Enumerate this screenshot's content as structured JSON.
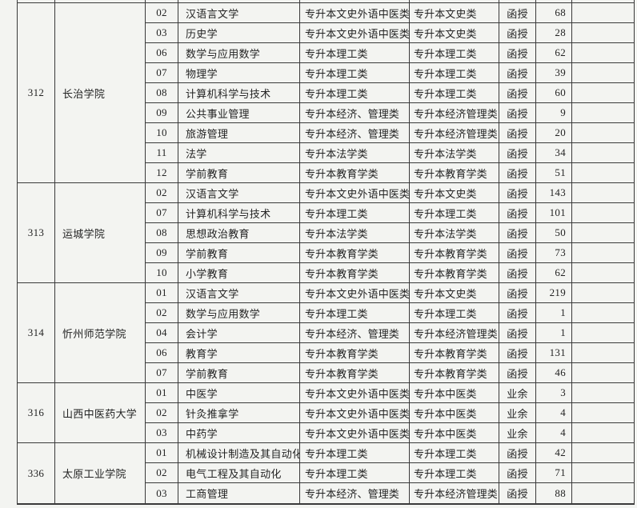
{
  "page": {
    "background_color": "#f3f4f1",
    "border_color": "#3a3a3a",
    "text_color": "#232323"
  },
  "table": {
    "sections": [
      {
        "college_code": "312",
        "college_name": "长治学院",
        "rows": [
          {
            "major_code": "02",
            "major_name": "汉语言文学",
            "category_1": "专升本文史外语中医类",
            "category_2": "专升本文史类",
            "study_form": "函授",
            "count": "68",
            "blank": ""
          },
          {
            "major_code": "03",
            "major_name": "历史学",
            "category_1": "专升本文史外语中医类",
            "category_2": "专升本文史类",
            "study_form": "函授",
            "count": "28",
            "blank": ""
          },
          {
            "major_code": "06",
            "major_name": "数学与应用数学",
            "category_1": "专升本理工类",
            "category_2": "专升本理工类",
            "study_form": "函授",
            "count": "62",
            "blank": ""
          },
          {
            "major_code": "07",
            "major_name": "物理学",
            "category_1": "专升本理工类",
            "category_2": "专升本理工类",
            "study_form": "函授",
            "count": "39",
            "blank": ""
          },
          {
            "major_code": "08",
            "major_name": "计算机科学与技术",
            "category_1": "专升本理工类",
            "category_2": "专升本理工类",
            "study_form": "函授",
            "count": "60",
            "blank": ""
          },
          {
            "major_code": "09",
            "major_name": "公共事业管理",
            "category_1": "专升本经济、管理类",
            "category_2": "专升本经济管理类",
            "study_form": "函授",
            "count": "9",
            "blank": ""
          },
          {
            "major_code": "10",
            "major_name": "旅游管理",
            "category_1": "专升本经济、管理类",
            "category_2": "专升本经济管理类",
            "study_form": "函授",
            "count": "20",
            "blank": ""
          },
          {
            "major_code": "11",
            "major_name": "法学",
            "category_1": "专升本法学类",
            "category_2": "专升本法学类",
            "study_form": "函授",
            "count": "34",
            "blank": ""
          },
          {
            "major_code": "12",
            "major_name": "学前教育",
            "category_1": "专升本教育学类",
            "category_2": "专升本教育学类",
            "study_form": "函授",
            "count": "51",
            "blank": ""
          }
        ]
      },
      {
        "college_code": "313",
        "college_name": "运城学院",
        "rows": [
          {
            "major_code": "02",
            "major_name": "汉语言文学",
            "category_1": "专升本文史外语中医类",
            "category_2": "专升本文史类",
            "study_form": "函授",
            "count": "143",
            "blank": ""
          },
          {
            "major_code": "07",
            "major_name": "计算机科学与技术",
            "category_1": "专升本理工类",
            "category_2": "专升本理工类",
            "study_form": "函授",
            "count": "101",
            "blank": ""
          },
          {
            "major_code": "08",
            "major_name": "思想政治教育",
            "category_1": "专升本法学类",
            "category_2": "专升本法学类",
            "study_form": "函授",
            "count": "50",
            "blank": ""
          },
          {
            "major_code": "09",
            "major_name": "学前教育",
            "category_1": "专升本教育学类",
            "category_2": "专升本教育学类",
            "study_form": "函授",
            "count": "73",
            "blank": ""
          },
          {
            "major_code": "10",
            "major_name": "小学教育",
            "category_1": "专升本教育学类",
            "category_2": "专升本教育学类",
            "study_form": "函授",
            "count": "62",
            "blank": ""
          }
        ]
      },
      {
        "college_code": "314",
        "college_name": "忻州师范学院",
        "rows": [
          {
            "major_code": "01",
            "major_name": "汉语言文学",
            "category_1": "专升本文史外语中医类",
            "category_2": "专升本文史类",
            "study_form": "函授",
            "count": "219",
            "blank": ""
          },
          {
            "major_code": "02",
            "major_name": "数学与应用数学",
            "category_1": "专升本理工类",
            "category_2": "专升本理工类",
            "study_form": "函授",
            "count": "1",
            "blank": ""
          },
          {
            "major_code": "04",
            "major_name": "会计学",
            "category_1": "专升本经济、管理类",
            "category_2": "专升本经济管理类",
            "study_form": "函授",
            "count": "1",
            "blank": ""
          },
          {
            "major_code": "06",
            "major_name": "教育学",
            "category_1": "专升本教育学类",
            "category_2": "专升本教育学类",
            "study_form": "函授",
            "count": "131",
            "blank": ""
          },
          {
            "major_code": "07",
            "major_name": "学前教育",
            "category_1": "专升本教育学类",
            "category_2": "专升本教育学类",
            "study_form": "函授",
            "count": "46",
            "blank": ""
          }
        ]
      },
      {
        "college_code": "316",
        "college_name": "山西中医药大学",
        "rows": [
          {
            "major_code": "01",
            "major_name": "中医学",
            "category_1": "专升本文史外语中医类",
            "category_2": "专升本中医类",
            "study_form": "业余",
            "count": "3",
            "blank": ""
          },
          {
            "major_code": "02",
            "major_name": "针灸推拿学",
            "category_1": "专升本文史外语中医类",
            "category_2": "专升本中医类",
            "study_form": "业余",
            "count": "4",
            "blank": ""
          },
          {
            "major_code": "03",
            "major_name": "中药学",
            "category_1": "专升本文史外语中医类",
            "category_2": "专升本中医类",
            "study_form": "业余",
            "count": "4",
            "blank": ""
          }
        ]
      },
      {
        "college_code": "336",
        "college_name": "太原工业学院",
        "rows": [
          {
            "major_code": "01",
            "major_name": "机械设计制造及其自动化",
            "category_1": "专升本理工类",
            "category_2": "专升本理工类",
            "study_form": "函授",
            "count": "42",
            "blank": ""
          },
          {
            "major_code": "02",
            "major_name": "电气工程及其自动化",
            "category_1": "专升本理工类",
            "category_2": "专升本理工类",
            "study_form": "函授",
            "count": "71",
            "blank": ""
          },
          {
            "major_code": "03",
            "major_name": "工商管理",
            "category_1": "专升本经济、管理类",
            "category_2": "专升本经济管理类",
            "study_form": "函授",
            "count": "88",
            "blank": ""
          }
        ]
      }
    ]
  }
}
